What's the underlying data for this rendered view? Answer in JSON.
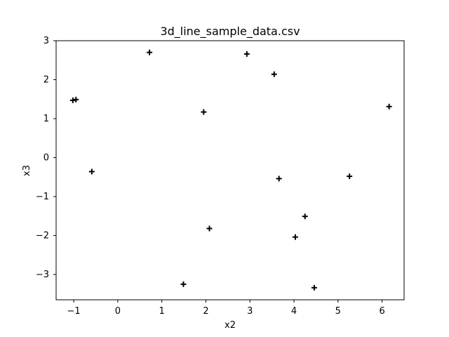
{
  "chart_data": {
    "type": "scatter",
    "title": "3d_line_sample_data.csv",
    "xlabel": "x2",
    "ylabel": "x3",
    "xlim": [
      -1.4,
      6.5
    ],
    "ylim": [
      -3.65,
      3.0
    ],
    "xticks": [
      -1,
      0,
      1,
      2,
      3,
      4,
      5,
      6
    ],
    "yticks": [
      -3,
      -2,
      -1,
      0,
      1,
      2,
      3
    ],
    "grid": false,
    "marker": "plus",
    "color": "#000000",
    "points": [
      {
        "x": -1.02,
        "y": 1.47
      },
      {
        "x": -0.95,
        "y": 1.49
      },
      {
        "x": -0.59,
        "y": -0.36
      },
      {
        "x": 0.72,
        "y": 2.7
      },
      {
        "x": 1.49,
        "y": -3.25
      },
      {
        "x": 1.95,
        "y": 1.17
      },
      {
        "x": 2.08,
        "y": -1.82
      },
      {
        "x": 2.93,
        "y": 2.66
      },
      {
        "x": 3.55,
        "y": 2.14
      },
      {
        "x": 3.66,
        "y": -0.54
      },
      {
        "x": 4.03,
        "y": -2.04
      },
      {
        "x": 4.25,
        "y": -1.51
      },
      {
        "x": 4.46,
        "y": -3.34
      },
      {
        "x": 5.26,
        "y": -0.48
      },
      {
        "x": 6.16,
        "y": 1.31
      }
    ]
  }
}
